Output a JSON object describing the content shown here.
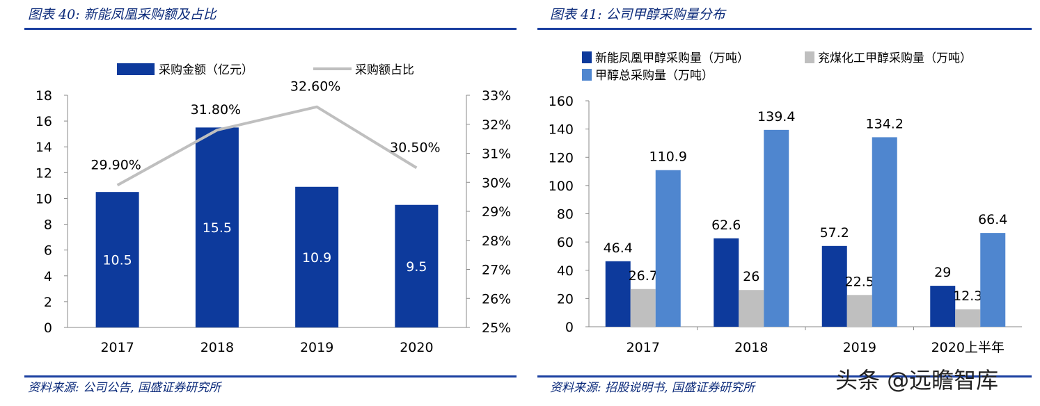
{
  "left": {
    "title": "图表 40:  新能凤凰采购额及占比",
    "source": "资料来源:  公司公告,  国盛证券研究所",
    "chart_data": {
      "type": "bar",
      "categories": [
        "2017",
        "2018",
        "2019",
        "2020"
      ],
      "series": [
        {
          "name": "采购金额（亿元）",
          "type": "bar",
          "axis": "left",
          "color": "#0d3a9c",
          "values": [
            10.5,
            15.5,
            10.9,
            9.5
          ],
          "labels": [
            "10.5",
            "15.5",
            "10.9",
            "9.5"
          ]
        },
        {
          "name": "采购额占比",
          "type": "line",
          "axis": "right",
          "color": "#bfbfbf",
          "values": [
            29.9,
            31.8,
            32.6,
            30.5
          ],
          "labels": [
            "29.90%",
            "31.80%",
            "32.60%",
            "30.50%"
          ]
        }
      ],
      "ylim": [
        0,
        18
      ],
      "yticks": [
        "0",
        "2",
        "4",
        "6",
        "8",
        "10",
        "12",
        "14",
        "16",
        "18"
      ],
      "y2lim": [
        25,
        33
      ],
      "y2ticks": [
        "25%",
        "26%",
        "27%",
        "28%",
        "29%",
        "30%",
        "31%",
        "32%",
        "33%"
      ],
      "legend": "top",
      "grid": false
    }
  },
  "right": {
    "title": "图表 41:  公司甲醇采购量分布",
    "source": "资料来源:  招股说明书,  国盛证券研究所",
    "chart_data": {
      "type": "bar",
      "categories": [
        "2017",
        "2018",
        "2019",
        "2020上半年"
      ],
      "series": [
        {
          "name": "新能凤凰甲醇采购量（万吨）",
          "color": "#0d3a9c",
          "values": [
            46.4,
            62.6,
            57.2,
            29
          ],
          "labels": [
            "46.4",
            "62.6",
            "57.2",
            "29"
          ]
        },
        {
          "name": "兖煤化工甲醇采购量（万吨）",
          "color": "#bfbfbf",
          "values": [
            26.7,
            26,
            22.5,
            12.3
          ],
          "labels": [
            "26.7",
            "26",
            "22.5",
            "12.3"
          ]
        },
        {
          "name": "甲醇总采购量（万吨）",
          "color": "#4f86cf",
          "values": [
            110.9,
            139.4,
            134.2,
            66.4
          ],
          "labels": [
            "110.9",
            "139.4",
            "134.2",
            "66.4"
          ]
        }
      ],
      "ylim": [
        0,
        160
      ],
      "yticks": [
        "0",
        "20",
        "40",
        "60",
        "80",
        "100",
        "120",
        "140",
        "160"
      ],
      "legend": "top",
      "grid": false
    }
  },
  "watermark": "头条 @远瞻智库"
}
